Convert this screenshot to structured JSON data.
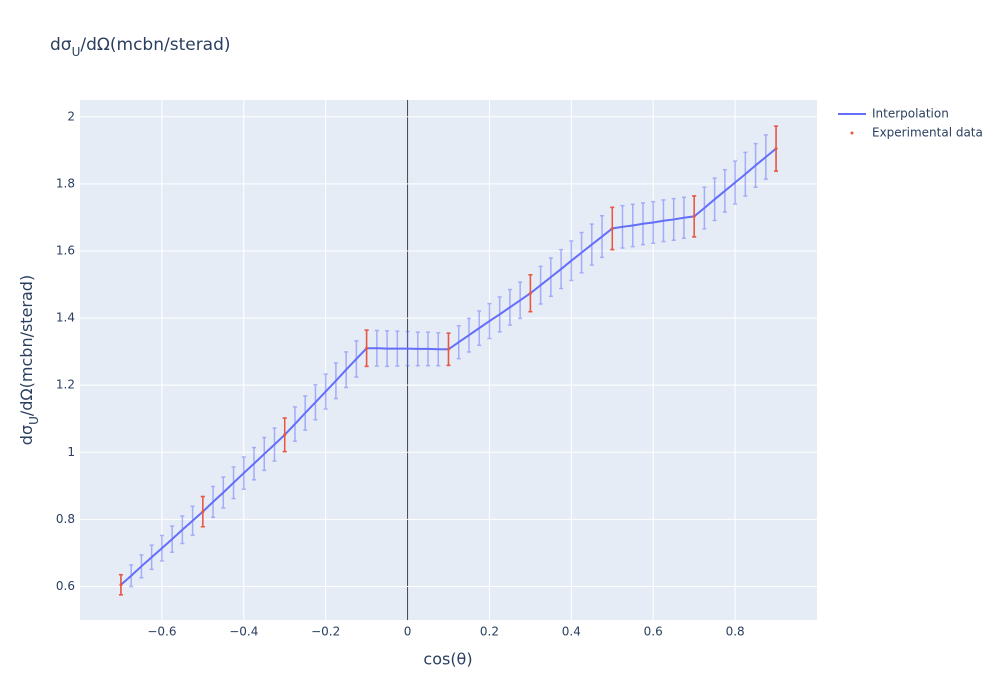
{
  "chart_data": {
    "type": "line",
    "title": [
      "dσ",
      "U",
      "/dΩ(mcbn/sterad)"
    ],
    "x_label": "cos(θ)",
    "y_label": [
      "dσ",
      "U",
      "/dΩ(mcbn/sterad)"
    ],
    "xlim": [
      -0.8,
      1.0
    ],
    "ylim": [
      0.5,
      2.05
    ],
    "xticks": [
      {
        "value": -0.6,
        "label": "−0.6"
      },
      {
        "value": -0.4,
        "label": "−0.4"
      },
      {
        "value": -0.2,
        "label": "−0.2"
      },
      0,
      0.2,
      0.4,
      0.6,
      0.8
    ],
    "yticks": [
      0.6,
      0.8,
      1,
      1.2,
      1.4,
      1.6,
      1.8,
      2
    ],
    "grid": true,
    "legend": "outside-top-right",
    "series": [
      {
        "name": "Interpolation",
        "color": "#636efa",
        "mode": "lines",
        "x": [
          -0.7,
          -0.675,
          -0.65,
          -0.625,
          -0.6,
          -0.575,
          -0.55,
          -0.525,
          -0.5,
          -0.475,
          -0.45,
          -0.425,
          -0.4,
          -0.375,
          -0.35,
          -0.325,
          -0.3,
          -0.275,
          -0.25,
          -0.225,
          -0.2,
          -0.175,
          -0.15,
          -0.125,
          -0.1,
          -0.075,
          -0.05,
          -0.025,
          0,
          0.025,
          0.05,
          0.075,
          0.1,
          0.125,
          0.15,
          0.175,
          0.2,
          0.225,
          0.25,
          0.275,
          0.3,
          0.325,
          0.35,
          0.375,
          0.4,
          0.425,
          0.45,
          0.475,
          0.5,
          0.525,
          0.55,
          0.575,
          0.6,
          0.625,
          0.65,
          0.675,
          0.7,
          0.725,
          0.75,
          0.775,
          0.8,
          0.825,
          0.85,
          0.875,
          0.9
        ],
        "values": [
          0.605,
          0.632,
          0.66,
          0.687,
          0.714,
          0.741,
          0.769,
          0.796,
          0.823,
          0.852,
          0.88,
          0.909,
          0.938,
          0.966,
          0.995,
          1.023,
          1.052,
          1.084,
          1.117,
          1.149,
          1.181,
          1.213,
          1.246,
          1.278,
          1.31,
          1.31,
          1.309,
          1.309,
          1.309,
          1.308,
          1.308,
          1.307,
          1.307,
          1.328,
          1.349,
          1.37,
          1.391,
          1.411,
          1.432,
          1.453,
          1.474,
          1.498,
          1.522,
          1.546,
          1.571,
          1.595,
          1.619,
          1.643,
          1.667,
          1.672,
          1.676,
          1.681,
          1.685,
          1.69,
          1.694,
          1.699,
          1.703,
          1.728,
          1.754,
          1.779,
          1.804,
          1.829,
          1.855,
          1.88,
          1.905
        ],
        "errors": [
          0.03,
          0.032,
          0.034,
          0.036,
          0.038,
          0.039,
          0.041,
          0.043,
          0.045,
          0.046,
          0.046,
          0.047,
          0.048,
          0.048,
          0.049,
          0.049,
          0.05,
          0.051,
          0.051,
          0.052,
          0.052,
          0.053,
          0.053,
          0.054,
          0.054,
          0.053,
          0.053,
          0.052,
          0.051,
          0.05,
          0.05,
          0.049,
          0.048,
          0.049,
          0.05,
          0.051,
          0.052,
          0.052,
          0.053,
          0.054,
          0.055,
          0.056,
          0.057,
          0.058,
          0.059,
          0.06,
          0.061,
          0.062,
          0.063,
          0.063,
          0.063,
          0.062,
          0.062,
          0.062,
          0.062,
          0.061,
          0.061,
          0.062,
          0.063,
          0.063,
          0.064,
          0.065,
          0.065,
          0.066,
          0.067
        ]
      },
      {
        "name": "Experimental data",
        "color": "#ef553b",
        "mode": "markers",
        "x": [
          -0.7,
          -0.5,
          -0.3,
          -0.1,
          0.1,
          0.3,
          0.5,
          0.7,
          0.9
        ],
        "values": [
          0.605,
          0.823,
          1.052,
          1.31,
          1.307,
          1.474,
          1.667,
          1.703,
          1.905
        ],
        "errors": [
          0.03,
          0.045,
          0.05,
          0.054,
          0.048,
          0.055,
          0.063,
          0.061,
          0.067
        ]
      }
    ]
  }
}
